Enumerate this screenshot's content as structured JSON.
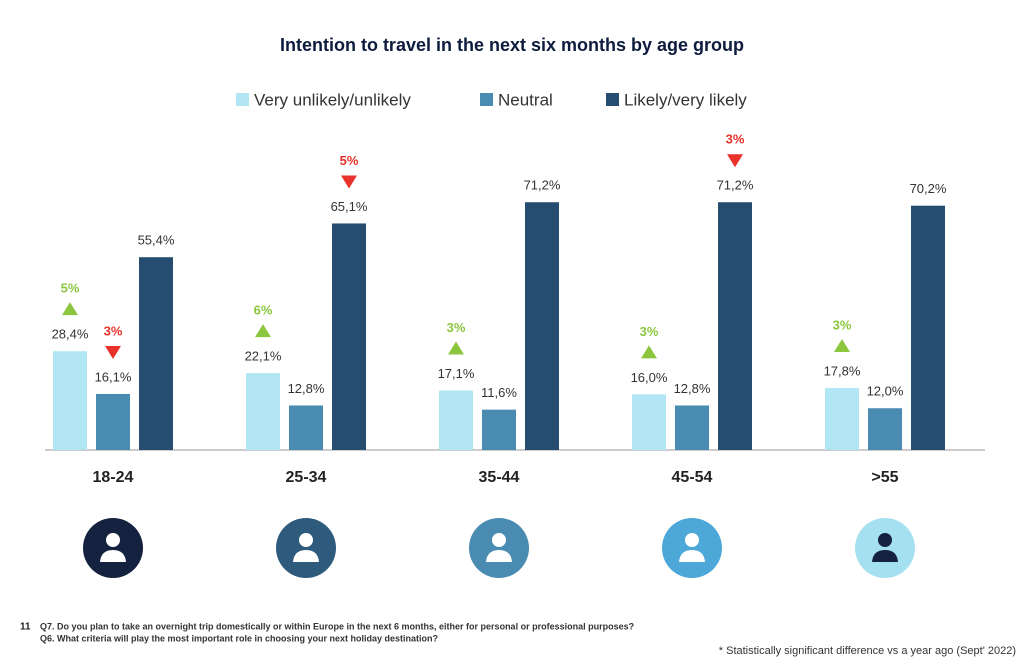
{
  "chart_data": {
    "type": "bar",
    "title": "Intention to travel in the next six months by age group",
    "categories": [
      "18-24",
      "25-34",
      "35-44",
      "45-54",
      ">55"
    ],
    "series": [
      {
        "name": "Very unlikely/unlikely",
        "color": "#b3e6f4",
        "values": [
          28.4,
          22.1,
          17.1,
          16.0,
          17.8
        ],
        "value_labels": [
          "28,4%",
          "22,1%",
          "17,1%",
          "16,0%",
          "17,8%"
        ],
        "changes": [
          5,
          6,
          3,
          3,
          3
        ],
        "change_labels": [
          "5%",
          "6%",
          "3%",
          "3%",
          "3%"
        ],
        "change_directions": [
          "up",
          "up",
          "up",
          "up",
          "up"
        ]
      },
      {
        "name": "Neutral",
        "color": "#4a8bb1",
        "values": [
          16.1,
          12.8,
          11.6,
          12.8,
          12.0
        ],
        "value_labels": [
          "16,1%",
          "12,8%",
          "11,6%",
          "12,8%",
          "12,0%"
        ],
        "changes": [
          3,
          null,
          null,
          null,
          null
        ],
        "change_labels": [
          "3%",
          null,
          null,
          null,
          null
        ],
        "change_directions": [
          "down",
          null,
          null,
          null,
          null
        ]
      },
      {
        "name": "Likely/very likely",
        "color": "#264d6f",
        "values": [
          55.4,
          65.1,
          71.2,
          71.2,
          70.2
        ],
        "value_labels": [
          "55,4%",
          "65,1%",
          "71,2%",
          "71,2%",
          "70,2%"
        ],
        "changes": [
          null,
          5,
          null,
          3,
          null
        ],
        "change_labels": [
          null,
          "5%",
          null,
          "3%",
          null
        ],
        "change_directions": [
          null,
          "down",
          null,
          "down",
          null
        ]
      }
    ]
  },
  "footer": {
    "page_number": "11",
    "questions": [
      "Q7. Do you plan to take an overnight trip domestically or within Europe in the next 6 months, either for personal or professional purposes?",
      "Q6. What criteria will play the most important role in choosing your next holiday destination?"
    ],
    "note": "* Statistically significant difference vs a year ago (Sept' 2022)"
  }
}
